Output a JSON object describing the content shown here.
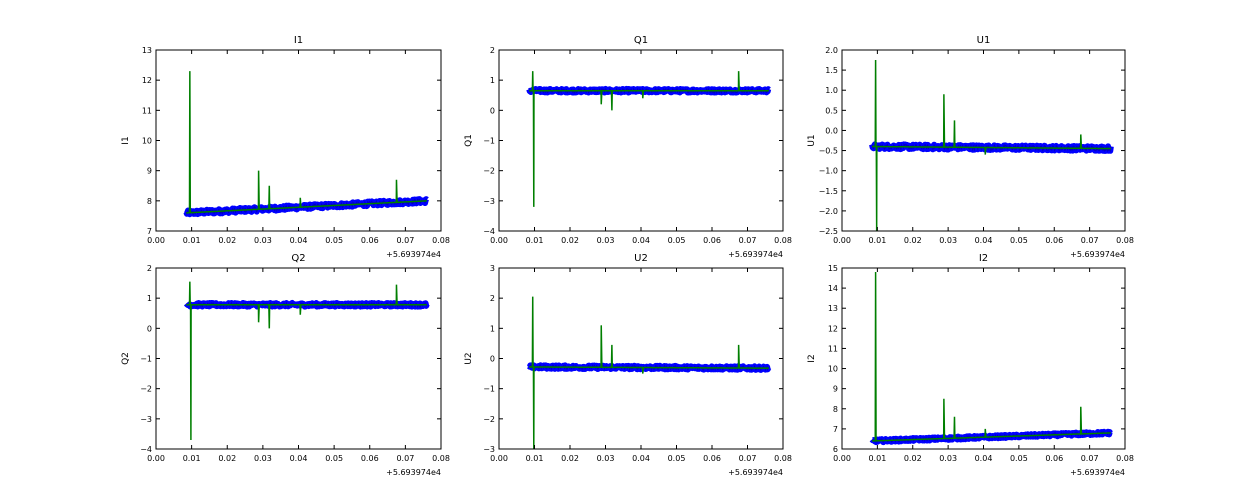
{
  "chart_data": [
    {
      "type": "line",
      "title": "I1",
      "ylabel": "I1",
      "x_offset_label": "+5.693974e4",
      "xlim": [
        0.0,
        0.08
      ],
      "ylim": [
        7,
        13
      ],
      "xticks": [
        "0.00",
        "0.01",
        "0.02",
        "0.03",
        "0.04",
        "0.05",
        "0.06",
        "0.07",
        "0.08"
      ],
      "yticks": [
        "7",
        "8",
        "9",
        "10",
        "11",
        "12",
        "13"
      ],
      "series": [
        {
          "color": "#0000ff",
          "x": [
            0.0085,
            0.076
          ],
          "y": [
            7.6,
            8.0
          ],
          "band": 0.15
        },
        {
          "color": "#007f00",
          "x": [
            0.0085,
            0.076
          ],
          "y": [
            7.6,
            8.0
          ],
          "spikes": [
            [
              0.0095,
              12.3
            ],
            [
              0.0288,
              9.0
            ],
            [
              0.0318,
              8.5
            ],
            [
              0.0405,
              8.1
            ],
            [
              0.0675,
              8.7
            ]
          ]
        }
      ]
    },
    {
      "type": "line",
      "title": "Q1",
      "ylabel": "Q1",
      "x_offset_label": "+5.693974e4",
      "xlim": [
        0.0,
        0.08
      ],
      "ylim": [
        -4,
        2
      ],
      "xticks": [
        "0.00",
        "0.01",
        "0.02",
        "0.03",
        "0.04",
        "0.05",
        "0.06",
        "0.07",
        "0.08"
      ],
      "yticks": [
        "−4",
        "−3",
        "−2",
        "−1",
        "0",
        "1",
        "2"
      ],
      "series": [
        {
          "color": "#0000ff",
          "x": [
            0.0085,
            0.076
          ],
          "y": [
            0.65,
            0.65
          ],
          "band": 0.12
        },
        {
          "color": "#007f00",
          "x": [
            0.0085,
            0.076
          ],
          "y": [
            0.65,
            0.65
          ],
          "spikes": [
            [
              0.0095,
              1.3
            ],
            [
              0.0098,
              -3.2
            ],
            [
              0.0288,
              0.2
            ],
            [
              0.0318,
              0.0
            ],
            [
              0.0405,
              0.4
            ],
            [
              0.0675,
              1.3
            ]
          ]
        }
      ]
    },
    {
      "type": "line",
      "title": "U1",
      "ylabel": "U1",
      "x_offset_label": "+5.693974e4",
      "xlim": [
        0.0,
        0.08
      ],
      "ylim": [
        -2.5,
        2.0
      ],
      "xticks": [
        "0.00",
        "0.01",
        "0.02",
        "0.03",
        "0.04",
        "0.05",
        "0.06",
        "0.07",
        "0.08"
      ],
      "yticks": [
        "−2.5",
        "−2.0",
        "−1.5",
        "−1.0",
        "−0.5",
        "0.0",
        "0.5",
        "1.0",
        "1.5",
        "2.0"
      ],
      "series": [
        {
          "color": "#0000ff",
          "x": [
            0.0085,
            0.076
          ],
          "y": [
            -0.4,
            -0.45
          ],
          "band": 0.12
        },
        {
          "color": "#007f00",
          "x": [
            0.0085,
            0.076
          ],
          "y": [
            -0.4,
            -0.45
          ],
          "spikes": [
            [
              0.0095,
              1.75
            ],
            [
              0.0098,
              -2.5
            ],
            [
              0.0288,
              0.9
            ],
            [
              0.0318,
              0.25
            ],
            [
              0.0405,
              -0.6
            ],
            [
              0.0675,
              -0.1
            ]
          ]
        }
      ]
    },
    {
      "type": "line",
      "title": "Q2",
      "ylabel": "Q2",
      "x_offset_label": "+5.693974e4",
      "xlim": [
        0.0,
        0.08
      ],
      "ylim": [
        -4,
        2
      ],
      "xticks": [
        "0.00",
        "0.01",
        "0.02",
        "0.03",
        "0.04",
        "0.05",
        "0.06",
        "0.07",
        "0.08"
      ],
      "yticks": [
        "−4",
        "−3",
        "−2",
        "−1",
        "0",
        "1",
        "2"
      ],
      "series": [
        {
          "color": "#0000ff",
          "x": [
            0.0085,
            0.076
          ],
          "y": [
            0.78,
            0.78
          ],
          "band": 0.12
        },
        {
          "color": "#007f00",
          "x": [
            0.0085,
            0.076
          ],
          "y": [
            0.78,
            0.78
          ],
          "spikes": [
            [
              0.0095,
              1.55
            ],
            [
              0.0098,
              -3.7
            ],
            [
              0.0288,
              0.2
            ],
            [
              0.0318,
              0.0
            ],
            [
              0.0405,
              0.45
            ],
            [
              0.0675,
              1.45
            ]
          ]
        }
      ]
    },
    {
      "type": "line",
      "title": "U2",
      "ylabel": "U2",
      "x_offset_label": "+5.693974e4",
      "xlim": [
        0.0,
        0.08
      ],
      "ylim": [
        -3,
        3
      ],
      "xticks": [
        "0.00",
        "0.01",
        "0.02",
        "0.03",
        "0.04",
        "0.05",
        "0.06",
        "0.07",
        "0.08"
      ],
      "yticks": [
        "−3",
        "−2",
        "−1",
        "0",
        "1",
        "2",
        "3"
      ],
      "series": [
        {
          "color": "#0000ff",
          "x": [
            0.0085,
            0.076
          ],
          "y": [
            -0.28,
            -0.32
          ],
          "band": 0.12
        },
        {
          "color": "#007f00",
          "x": [
            0.0085,
            0.076
          ],
          "y": [
            -0.28,
            -0.32
          ],
          "spikes": [
            [
              0.0095,
              2.05
            ],
            [
              0.0098,
              -3.0
            ],
            [
              0.0288,
              1.1
            ],
            [
              0.0318,
              0.45
            ],
            [
              0.0405,
              -0.5
            ],
            [
              0.0675,
              0.45
            ]
          ]
        }
      ]
    },
    {
      "type": "line",
      "title": "I2",
      "ylabel": "I2",
      "x_offset_label": "+5.693974e4",
      "xlim": [
        0.0,
        0.08
      ],
      "ylim": [
        6,
        15
      ],
      "xticks": [
        "0.00",
        "0.01",
        "0.02",
        "0.03",
        "0.04",
        "0.05",
        "0.06",
        "0.07",
        "0.08"
      ],
      "yticks": [
        "6",
        "7",
        "8",
        "9",
        "10",
        "11",
        "12",
        "13",
        "14",
        "15"
      ],
      "series": [
        {
          "color": "#0000ff",
          "x": [
            0.0085,
            0.076
          ],
          "y": [
            6.4,
            6.8
          ],
          "band": 0.15
        },
        {
          "color": "#007f00",
          "x": [
            0.0085,
            0.076
          ],
          "y": [
            6.4,
            6.8
          ],
          "spikes": [
            [
              0.0095,
              14.8
            ],
            [
              0.0288,
              8.5
            ],
            [
              0.0318,
              7.6
            ],
            [
              0.0405,
              7.0
            ],
            [
              0.0675,
              8.1
            ]
          ]
        }
      ]
    }
  ]
}
